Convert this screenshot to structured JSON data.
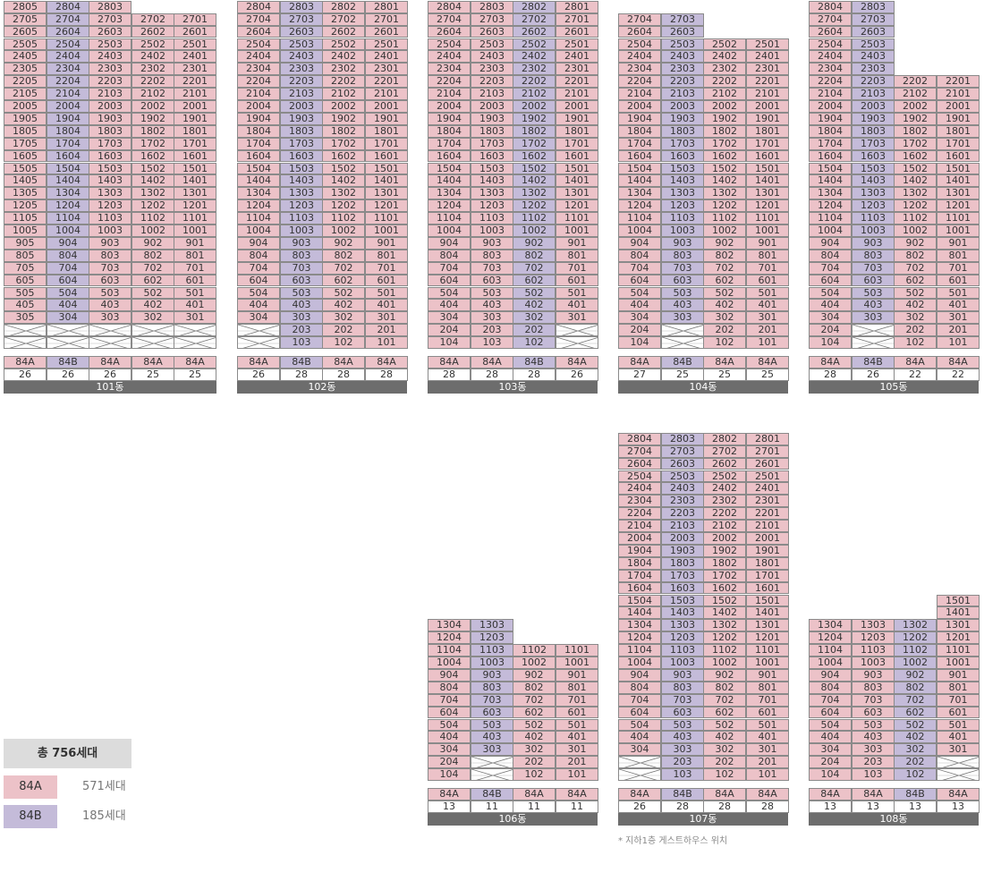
{
  "unit_types": [
    {
      "code": "84A",
      "color": "#ecc2c8",
      "count": "571세대"
    },
    {
      "code": "84B",
      "color": "#c4bbd9",
      "count": "185세대"
    }
  ],
  "legend": {
    "total": "총 756세대"
  },
  "note_107": "* 지하1층 게스트하우스 위치",
  "buildings": [
    {
      "name": "101동",
      "columns": [
        {
          "line": "05",
          "type": "84A",
          "top": 28,
          "bottom": 3,
          "count": "26"
        },
        {
          "line": "04",
          "type": "84B",
          "top": 28,
          "bottom": 3,
          "count": "26"
        },
        {
          "line": "03",
          "type": "84A",
          "top": 28,
          "bottom": 3,
          "count": "26"
        },
        {
          "line": "02",
          "type": "84A",
          "top": 27,
          "bottom": 3,
          "count": "25"
        },
        {
          "line": "01",
          "type": "84A",
          "top": 27,
          "bottom": 3,
          "count": "25"
        }
      ]
    },
    {
      "name": "102동",
      "columns": [
        {
          "line": "04",
          "type": "84A",
          "top": 28,
          "bottom": 3,
          "count": "26"
        },
        {
          "line": "03",
          "type": "84B",
          "top": 28,
          "bottom": 1,
          "count": "28"
        },
        {
          "line": "02",
          "type": "84A",
          "top": 28,
          "bottom": 1,
          "count": "28"
        },
        {
          "line": "01",
          "type": "84A",
          "top": 28,
          "bottom": 1,
          "count": "28"
        }
      ]
    },
    {
      "name": "103동",
      "columns": [
        {
          "line": "04",
          "type": "84A",
          "top": 28,
          "bottom": 1,
          "count": "28"
        },
        {
          "line": "03",
          "type": "84A",
          "top": 28,
          "bottom": 1,
          "count": "28"
        },
        {
          "line": "02",
          "type": "84B",
          "top": 28,
          "bottom": 1,
          "count": "28"
        },
        {
          "line": "01",
          "type": "84A",
          "top": 28,
          "bottom": 3,
          "count": "26"
        }
      ]
    },
    {
      "name": "104동",
      "columns": [
        {
          "line": "04",
          "type": "84A",
          "top": 27,
          "bottom": 1,
          "count": "27"
        },
        {
          "line": "03",
          "type": "84B",
          "top": 27,
          "bottom": 3,
          "count": "25"
        },
        {
          "line": "02",
          "type": "84A",
          "top": 25,
          "bottom": 1,
          "count": "25"
        },
        {
          "line": "01",
          "type": "84A",
          "top": 25,
          "bottom": 1,
          "count": "25"
        }
      ]
    },
    {
      "name": "105동",
      "columns": [
        {
          "line": "04",
          "type": "84A",
          "top": 28,
          "bottom": 1,
          "count": "28"
        },
        {
          "line": "03",
          "type": "84B",
          "top": 28,
          "bottom": 3,
          "count": "26"
        },
        {
          "line": "02",
          "type": "84A",
          "top": 22,
          "bottom": 1,
          "count": "22"
        },
        {
          "line": "01",
          "type": "84A",
          "top": 22,
          "bottom": 1,
          "count": "22"
        }
      ]
    },
    {
      "name": "106동",
      "columns": [
        {
          "line": "04",
          "type": "84A",
          "top": 13,
          "bottom": 1,
          "count": "13"
        },
        {
          "line": "03",
          "type": "84B",
          "top": 13,
          "bottom": 3,
          "count": "11"
        },
        {
          "line": "02",
          "type": "84A",
          "top": 11,
          "bottom": 1,
          "count": "11"
        },
        {
          "line": "01",
          "type": "84A",
          "top": 11,
          "bottom": 1,
          "count": "11"
        }
      ]
    },
    {
      "name": "107동",
      "columns": [
        {
          "line": "04",
          "type": "84A",
          "top": 28,
          "bottom": 3,
          "count": "26"
        },
        {
          "line": "03",
          "type": "84B",
          "top": 28,
          "bottom": 1,
          "count": "28"
        },
        {
          "line": "02",
          "type": "84A",
          "top": 28,
          "bottom": 1,
          "count": "28"
        },
        {
          "line": "01",
          "type": "84A",
          "top": 28,
          "bottom": 1,
          "count": "28"
        }
      ]
    },
    {
      "name": "108동",
      "columns": [
        {
          "line": "04",
          "type": "84A",
          "top": 13,
          "bottom": 1,
          "count": "13"
        },
        {
          "line": "03",
          "type": "84A",
          "top": 13,
          "bottom": 1,
          "count": "13"
        },
        {
          "line": "02",
          "type": "84B",
          "top": 13,
          "bottom": 1,
          "count": "13"
        },
        {
          "line": "01",
          "type": "84A",
          "top": 15,
          "bottom": 3,
          "count": "13"
        }
      ]
    }
  ]
}
